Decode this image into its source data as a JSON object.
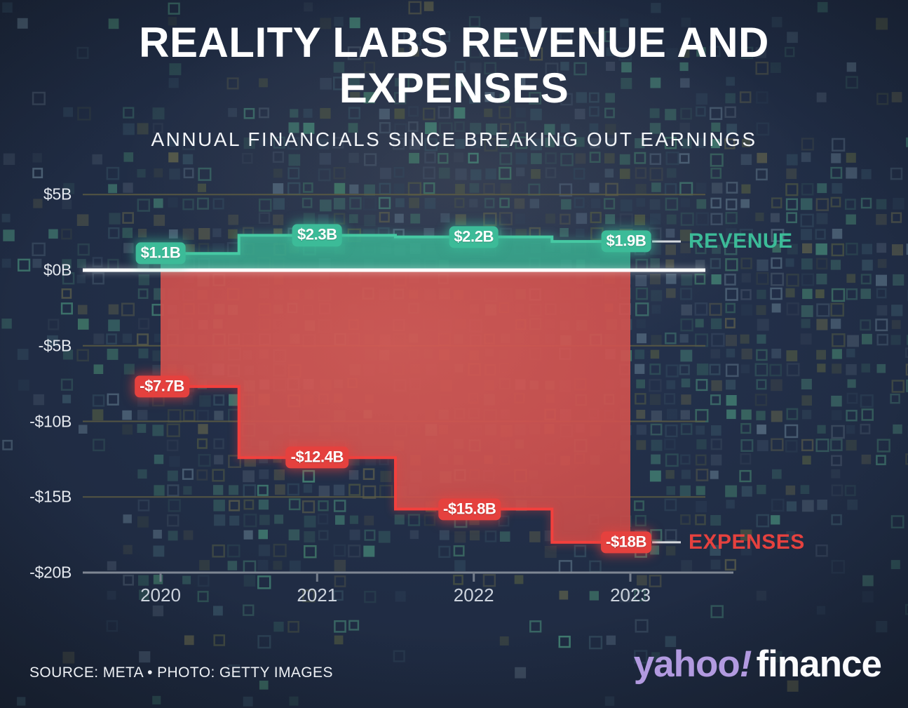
{
  "header": {
    "title_lines": [
      "REALITY LABS REVENUE AND",
      "EXPENSES"
    ],
    "subtitle": "ANNUAL FINANCIALS SINCE BREAKING OUT EARNINGS"
  },
  "chart_data": {
    "type": "area",
    "step": "mid",
    "title": "REALITY LABS REVENUE AND EXPENSES",
    "subtitle": "ANNUAL FINANCIALS SINCE BREAKING OUT EARNINGS",
    "categories": [
      "2020",
      "2021",
      "2022",
      "2023"
    ],
    "series": [
      {
        "name": "REVENUE",
        "values": [
          1.1,
          2.3,
          2.2,
          1.9
        ],
        "point_labels": [
          "$1.1B",
          "$2.3B",
          "$2.2B",
          "$1.9B"
        ],
        "color": "#3cbb98",
        "line_color": "#46c9a3",
        "fill_color": "#36a089"
      },
      {
        "name": "EXPENSES",
        "values": [
          -7.7,
          -12.4,
          -15.8,
          -18
        ],
        "point_labels": [
          "-$7.7B",
          "-$12.4B",
          "-$15.8B",
          "-$18B"
        ],
        "color": "#e5413e",
        "line_color": "#f2403d",
        "fill_color": "#d0524f"
      }
    ],
    "y_ticks": [
      {
        "value": 5,
        "label": "$5B"
      },
      {
        "value": 0,
        "label": "$0B"
      },
      {
        "value": -5,
        "label": "-$5B"
      },
      {
        "value": -10,
        "label": "-$10B"
      },
      {
        "value": -15,
        "label": "-$15B"
      },
      {
        "value": -20,
        "label": "-$20B"
      }
    ],
    "ylim": [
      -20,
      5
    ],
    "xlabel": "",
    "ylabel": "",
    "grid": true,
    "legend_position": "right-of-last-point",
    "colors": {
      "zero_line": "#ffffff",
      "gridline": "#5e5d42",
      "axis": "#7f8793",
      "connector": "#d5d9de"
    }
  },
  "footer": {
    "source": "SOURCE: META • PHOTO: GETTY IMAGES",
    "logo": {
      "yahoo": "yahoo",
      "bang": "!",
      "finance": "finance"
    }
  }
}
